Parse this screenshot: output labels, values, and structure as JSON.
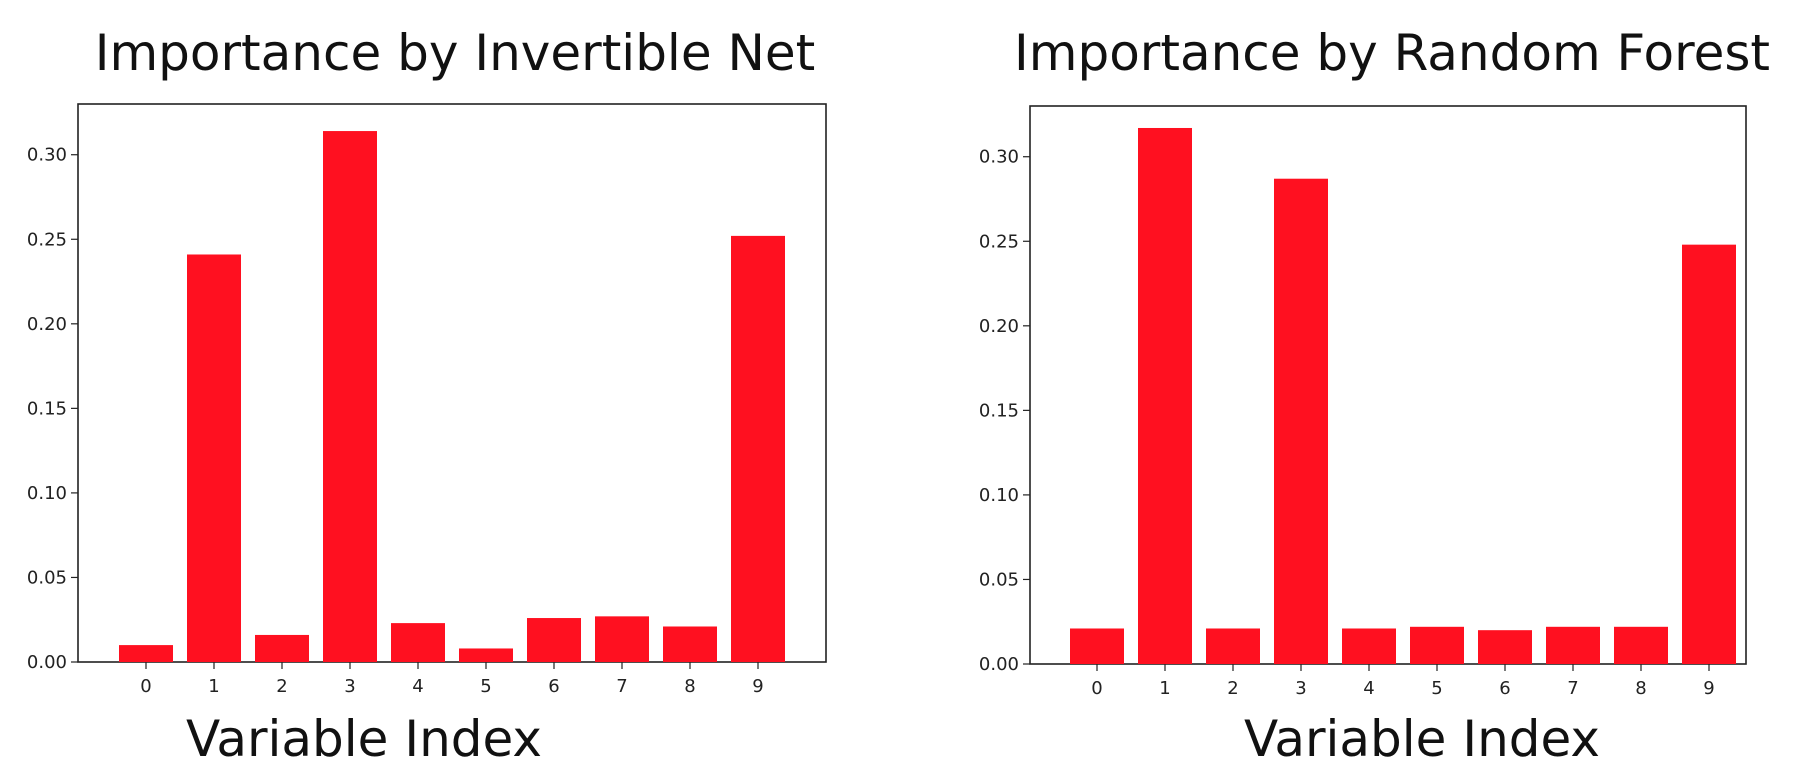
{
  "chart_data": [
    {
      "type": "bar",
      "title": "Importance by Invertible Net",
      "xlabel": "Variable Index",
      "ylabel": "",
      "categories": [
        "0",
        "1",
        "2",
        "3",
        "4",
        "5",
        "6",
        "7",
        "8",
        "9"
      ],
      "values": [
        0.01,
        0.241,
        0.016,
        0.314,
        0.023,
        0.008,
        0.026,
        0.027,
        0.021,
        0.252
      ],
      "ylim": [
        0,
        0.33
      ],
      "yticks": [
        "0.00",
        "0.05",
        "0.10",
        "0.15",
        "0.20",
        "0.25",
        "0.30"
      ],
      "bar_color": "#ff1020",
      "grid": false
    },
    {
      "type": "bar",
      "title": "Importance by Random Forest",
      "xlabel": "Variable Index",
      "ylabel": "",
      "categories": [
        "0",
        "1",
        "2",
        "3",
        "4",
        "5",
        "6",
        "7",
        "8",
        "9"
      ],
      "values": [
        0.021,
        0.317,
        0.021,
        0.287,
        0.021,
        0.022,
        0.02,
        0.022,
        0.022,
        0.248
      ],
      "ylim": [
        0,
        0.33
      ],
      "yticks": [
        "0.00",
        "0.05",
        "0.10",
        "0.15",
        "0.20",
        "0.25",
        "0.30"
      ],
      "bar_color": "#ff1020",
      "grid": false
    }
  ]
}
